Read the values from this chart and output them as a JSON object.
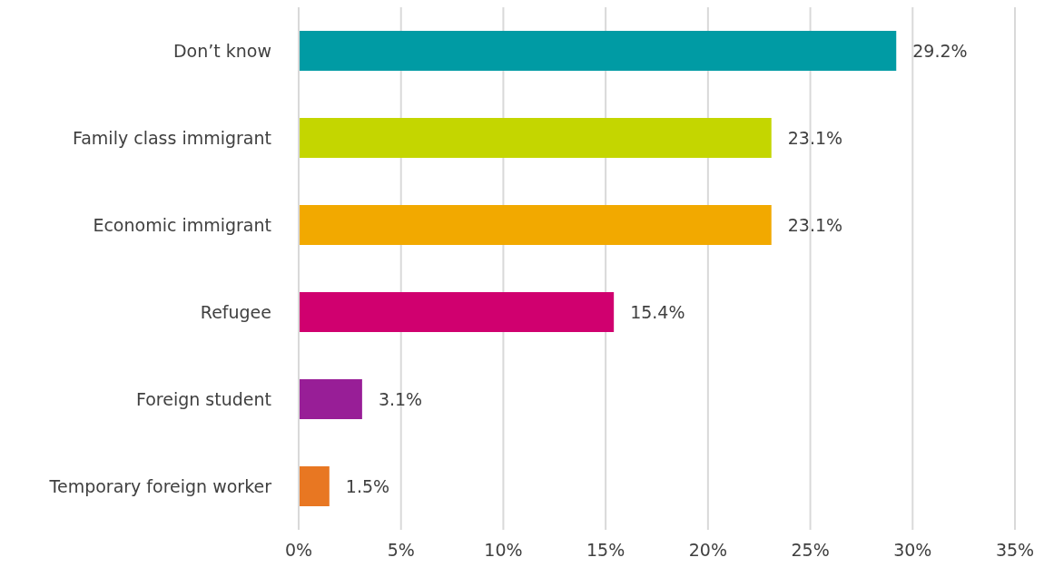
{
  "chart_data": {
    "type": "bar",
    "orientation": "horizontal",
    "categories": [
      "Don’t know",
      "Family class immigrant",
      "Economic immigrant",
      "Refugee",
      "Foreign student",
      "Temporary foreign worker"
    ],
    "values": [
      29.2,
      23.1,
      23.1,
      15.4,
      3.1,
      1.5
    ],
    "colors": [
      "#009ba4",
      "#c4d600",
      "#f2a900",
      "#d0006f",
      "#981e97",
      "#e87722"
    ],
    "value_labels": [
      "29.2%",
      "23.1%",
      "23.1%",
      "15.4%",
      "3.1%",
      "1.5%"
    ],
    "xlim": [
      0,
      35
    ],
    "xticks": [
      {
        "value": 0,
        "label": "0%"
      },
      {
        "value": 5,
        "label": "5%"
      },
      {
        "value": 10,
        "label": "10%"
      },
      {
        "value": 15,
        "label": "15%"
      },
      {
        "value": 20,
        "label": "20%"
      },
      {
        "value": 25,
        "label": "25%"
      },
      {
        "value": 30,
        "label": "30%"
      },
      {
        "value": 35,
        "label": "35%"
      }
    ],
    "grid": "x"
  }
}
